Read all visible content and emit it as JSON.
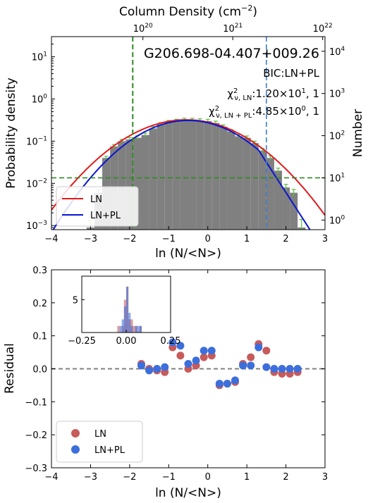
{
  "chart_data": [
    {
      "type": "bar",
      "panel": "top",
      "annotation_name": "G206.698-04.407+009.26",
      "annotation_bic": "BIC:LN+PL",
      "annotation_chi_ln_prefix": "χ",
      "annotation_chi_ln_sup": "2",
      "annotation_chi_ln_sub": "ν, LN",
      "annotation_chi_ln_value": ":1.20×10",
      "annotation_chi_ln_exp": "1",
      "annotation_chi_ln_tail": ", 1",
      "annotation_chi_lnpl_prefix": "χ",
      "annotation_chi_lnpl_sup": "2",
      "annotation_chi_lnpl_sub": "ν, LN + PL",
      "annotation_chi_lnpl_value": ":4.85×10",
      "annotation_chi_lnpl_exp": "0",
      "annotation_chi_lnpl_tail": ", 1",
      "xlabel": "ln (N/<N>)",
      "ylabel": "Probability density",
      "top_xlabel": "Column Density (cm",
      "top_xlabel_sup": "−2",
      "top_xlabel_close": ")",
      "right_ylabel": "Number",
      "xlim": [
        -4,
        3
      ],
      "ylim": [
        0.0008,
        30
      ],
      "yscale": "log",
      "xticks": [
        "−4",
        "−3",
        "−2",
        "−1",
        "0",
        "1",
        "2",
        "3"
      ],
      "yticks": [
        {
          "base": "10",
          "exp": "−3",
          "value": 0.001
        },
        {
          "base": "10",
          "exp": "−2",
          "value": 0.01
        },
        {
          "base": "10",
          "exp": "−1",
          "value": 0.1
        },
        {
          "base": "10",
          "exp": "0",
          "value": 1
        },
        {
          "base": "10",
          "exp": "1",
          "value": 10
        }
      ],
      "top_xticks": [
        {
          "base": "10",
          "exp": "20",
          "x": -1.66
        },
        {
          "base": "10",
          "exp": "21",
          "x": 0.64
        },
        {
          "base": "10",
          "exp": "22",
          "x": 2.94
        }
      ],
      "right_yticks": [
        {
          "base": "10",
          "exp": "0",
          "value": 0.00135
        },
        {
          "base": "10",
          "exp": "1",
          "value": 0.0135
        },
        {
          "base": "10",
          "exp": "2",
          "value": 0.135
        },
        {
          "base": "10",
          "exp": "3",
          "value": 1.35
        },
        {
          "base": "10",
          "exp": "4",
          "value": 13.5
        }
      ],
      "histogram": {
        "bin_width": 0.2,
        "left_edges": [
          -3.1,
          -2.9,
          -2.7,
          -2.5,
          -2.3,
          -2.1,
          -1.9,
          -1.7,
          -1.5,
          -1.3,
          -1.1,
          -0.9,
          -0.7,
          -0.5,
          -0.3,
          -0.1,
          0.1,
          0.3,
          0.5,
          0.7,
          0.9,
          1.1,
          1.3,
          1.5,
          1.7,
          1.9,
          2.1,
          2.3
        ],
        "values": [
          0.0009,
          0.006,
          0.04,
          0.075,
          0.1,
          0.11,
          0.12,
          0.14,
          0.2,
          0.25,
          0.28,
          0.3,
          0.32,
          0.32,
          0.31,
          0.3,
          0.27,
          0.22,
          0.17,
          0.13,
          0.12,
          0.09,
          0.06,
          0.04,
          0.02,
          0.008,
          0.006,
          0.0009
        ],
        "errors": [
          0.0004,
          0.001,
          0.004,
          0.008,
          0.01,
          0.012,
          0.013,
          0.015,
          0.02,
          0.025,
          0.03,
          0.03,
          0.03,
          0.03,
          0.03,
          0.03,
          0.028,
          0.023,
          0.018,
          0.014,
          0.013,
          0.01,
          0.007,
          0.005,
          0.003,
          0.0015,
          0.0012,
          0.0005
        ],
        "color": "#808080",
        "error_color": "#5cbf3f"
      },
      "series": [
        {
          "name": "LN",
          "color": "#e31a1c",
          "model": "lognormal",
          "amp": 0.32,
          "mu": -0.55,
          "sigma": 1.1
        },
        {
          "name": "LN+PL",
          "color": "#0a14d4",
          "model": "lognormal_powerlaw",
          "amp": 0.31,
          "mu": -0.5,
          "sigma": 1.0,
          "pl_start": 1.3,
          "pl_slope": -3.3
        }
      ],
      "vlines": [
        {
          "x": -1.92,
          "color": "#2e8b22",
          "style": "dashed"
        },
        {
          "x": 1.5,
          "color": "#3a7dd8",
          "style": "dashed"
        }
      ],
      "hlines": [
        {
          "y": 0.0135,
          "color": "#2e8b22",
          "style": "dashed"
        }
      ],
      "legend": "lower-left"
    },
    {
      "type": "scatter",
      "panel": "bottom",
      "xlabel": "ln (N/<N>)",
      "ylabel": "Residual",
      "xlim": [
        -4,
        3
      ],
      "ylim": [
        -0.3,
        0.3
      ],
      "xticks": [
        "−4",
        "−3",
        "−2",
        "−1",
        "0",
        "1",
        "2",
        "3"
      ],
      "yticks": [
        "−0.3",
        "−0.2",
        "−0.1",
        "0.0",
        "0.1",
        "0.2",
        "0.3"
      ],
      "ytick_values": [
        -0.3,
        -0.2,
        -0.1,
        0.0,
        0.1,
        0.2,
        0.3
      ],
      "hline": {
        "y": 0,
        "color": "#808080",
        "style": "dashed"
      },
      "series": [
        {
          "name": "LN",
          "color": "#c85a5a",
          "x": [
            -1.7,
            -1.5,
            -1.3,
            -1.1,
            -0.9,
            -0.7,
            -0.5,
            -0.3,
            -0.1,
            0.1,
            0.3,
            0.5,
            0.7,
            0.9,
            1.1,
            1.3,
            1.5,
            1.7,
            1.9,
            2.1,
            2.3
          ],
          "y": [
            0.015,
            0.0,
            -0.005,
            -0.01,
            0.065,
            0.04,
            0.0,
            0.01,
            0.035,
            0.04,
            -0.05,
            -0.045,
            -0.04,
            0.015,
            0.035,
            0.075,
            0.055,
            -0.01,
            -0.015,
            -0.015,
            -0.01
          ]
        },
        {
          "name": "LN+PL",
          "color": "#3c6fdc",
          "x": [
            -1.7,
            -1.5,
            -1.3,
            -1.1,
            -0.9,
            -0.7,
            -0.5,
            -0.3,
            -0.1,
            0.1,
            0.3,
            0.5,
            0.7,
            0.9,
            1.1,
            1.3,
            1.5,
            1.7,
            1.9,
            2.1,
            2.3
          ],
          "y": [
            0.01,
            -0.005,
            0.0,
            0.005,
            0.08,
            0.07,
            0.015,
            0.025,
            0.055,
            0.055,
            -0.045,
            -0.045,
            -0.035,
            0.01,
            0.01,
            0.065,
            0.005,
            0.0,
            0.0,
            0.0,
            0.0
          ]
        }
      ],
      "legend": "lower-left",
      "inset": {
        "type": "histogram",
        "xlim": [
          -0.25,
          0.25
        ],
        "ylim": [
          0,
          8.6
        ],
        "xticks": [
          "−0.25",
          "0.00",
          "0.25"
        ],
        "xtick_values": [
          -0.25,
          0.0,
          0.25
        ],
        "yticks": [
          "5"
        ],
        "ytick_values": [
          5
        ],
        "bin_width": 0.0125,
        "series": [
          {
            "name": "LN",
            "color": "#c85a5a",
            "left_edges": [
              -0.05,
              -0.0375,
              -0.025,
              -0.0125,
              0.0,
              0.0125,
              0.025,
              0.0375,
              0.05,
              0.0625,
              0.075
            ],
            "counts": [
              1,
              0,
              1,
              5,
              7,
              2,
              2,
              1,
              1,
              0,
              1
            ]
          },
          {
            "name": "LN+PL",
            "color": "#3c6fdc",
            "left_edges": [
              -0.05,
              -0.0375,
              -0.025,
              -0.0125,
              0.0,
              0.0125,
              0.025,
              0.0375,
              0.05,
              0.0625,
              0.075
            ],
            "counts": [
              0,
              1,
              2,
              4,
              7,
              3,
              1,
              0,
              1,
              1,
              1
            ]
          }
        ]
      }
    }
  ]
}
